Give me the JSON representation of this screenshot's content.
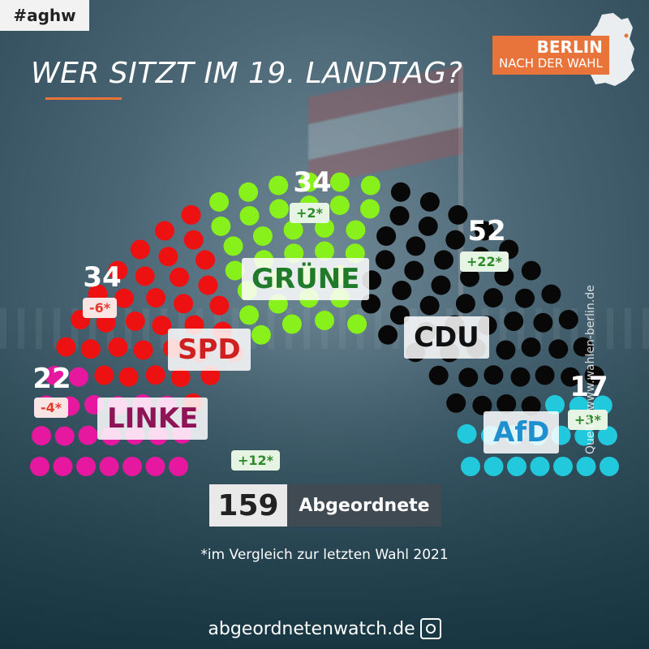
{
  "hashtag": "#aghw",
  "title": "WER SITZT IM 19. LANDTAG?",
  "brand": {
    "line1": "BERLIN",
    "line2": "NACH DER WAHL"
  },
  "total": {
    "number": "159",
    "label": "Abgeordnete"
  },
  "footnote": "*im Vergleich zur letzten Wahl 2021",
  "source": "Quelle: www.wahlen-berlin.de",
  "footer": "abgeordnetenwatch.de",
  "colors": {
    "accent": "#e8743b"
  },
  "chart_data": {
    "type": "parliament",
    "total_seats": 159,
    "parties": [
      {
        "name": "LINKE",
        "seats": 22,
        "seats_label": "22",
        "change": "-4*",
        "color": "#e6189f",
        "text_color": "#8e1357"
      },
      {
        "name": "SPD",
        "seats": 34,
        "seats_label": "34",
        "change": "-6*",
        "color": "#ee1111",
        "text_color": "#d01f1f"
      },
      {
        "name": "GRÜNE",
        "seats": 34,
        "seats_label": "34",
        "change": "+2*",
        "color": "#88f01a",
        "text_color": "#1f7a2a"
      },
      {
        "name": "CDU",
        "seats": 52,
        "seats_label": "52",
        "change": "+22*",
        "color": "#080808",
        "text_color": "#111111"
      },
      {
        "name": "AfD",
        "seats": 17,
        "seats_label": "17",
        "change": "+3*",
        "color": "#22c9dc",
        "text_color": "#1e8fcf"
      }
    ],
    "extra_change": "+12*"
  }
}
